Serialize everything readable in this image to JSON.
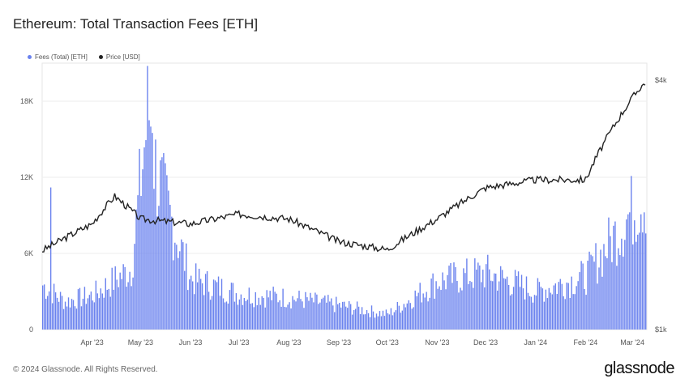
{
  "title": "Ethereum: Total Transaction Fees [ETH]",
  "footer": "© 2024 Glassnode. All Rights Reserved.",
  "brand": "glassnode",
  "legend": {
    "fees_label": "Fees (Total) [ETH]",
    "price_label": "Price [USD]"
  },
  "colors": {
    "fees": "#6a82ee",
    "price": "#222222",
    "grid": "#eeeeee"
  },
  "chart_data": {
    "type": "bar+line",
    "title": "Ethereum: Total Transaction Fees [ETH]",
    "x_ticks": [
      "Apr '23",
      "May '23",
      "Jun '23",
      "Jul '23",
      "Aug '23",
      "Sep '23",
      "Oct '23",
      "Nov '23",
      "Dec '23",
      "Jan '24",
      "Feb '24",
      "Mar '24"
    ],
    "y_left_ticks": [
      "0",
      "6K",
      "12K",
      "18K"
    ],
    "y_left_range": [
      0,
      21000
    ],
    "y_right_ticks": [
      "$1k",
      "$4k"
    ],
    "y_right_range": [
      1000,
      4400
    ],
    "y_right_scale": "log",
    "grid": true,
    "legend_position": "top-left",
    "series": [
      {
        "name": "Fees (Total) [ETH]",
        "kind": "bar",
        "axis": "left",
        "monthly_anchors": [
          {
            "date": "Mar 2023",
            "value": 3500
          },
          {
            "date": "Mid Mar 2023",
            "value": 2200
          },
          {
            "date": "Apr 2023",
            "value": 2700
          },
          {
            "date": "Late Apr 2023",
            "value": 4800
          },
          {
            "date": "May 5 2023",
            "value": 16800
          },
          {
            "date": "May 10 2023",
            "value": 12000
          },
          {
            "date": "Jun 2023",
            "value": 4000
          },
          {
            "date": "Jul 2023",
            "value": 2800
          },
          {
            "date": "Aug 2023",
            "value": 2500
          },
          {
            "date": "Sep 2023",
            "value": 1900
          },
          {
            "date": "Oct 2023",
            "value": 1200
          },
          {
            "date": "Nov 2023",
            "value": 3800
          },
          {
            "date": "Dec 2023",
            "value": 4500
          },
          {
            "date": "Jan 2024",
            "value": 3000
          },
          {
            "date": "Feb 2024",
            "value": 4200
          },
          {
            "date": "Mar 2024",
            "value": 10500
          }
        ]
      },
      {
        "name": "Price [USD]",
        "kind": "line",
        "axis": "right",
        "monthly_anchors": [
          {
            "date": "Mar 2023",
            "value": 1550
          },
          {
            "date": "Apr 2023",
            "value": 1800
          },
          {
            "date": "Mid Apr 2023",
            "value": 2100
          },
          {
            "date": "May 2023",
            "value": 1850
          },
          {
            "date": "Jun 2023",
            "value": 1800
          },
          {
            "date": "Jul 2023",
            "value": 1900
          },
          {
            "date": "Aug 2023",
            "value": 1850
          },
          {
            "date": "Sep 2023",
            "value": 1630
          },
          {
            "date": "Oct 2023",
            "value": 1560
          },
          {
            "date": "Nov 2023",
            "value": 1850
          },
          {
            "date": "Dec 2023",
            "value": 2200
          },
          {
            "date": "Jan 2024",
            "value": 2300
          },
          {
            "date": "Feb 2024",
            "value": 2300
          },
          {
            "date": "Mar 2024",
            "value": 3900
          }
        ]
      }
    ]
  }
}
